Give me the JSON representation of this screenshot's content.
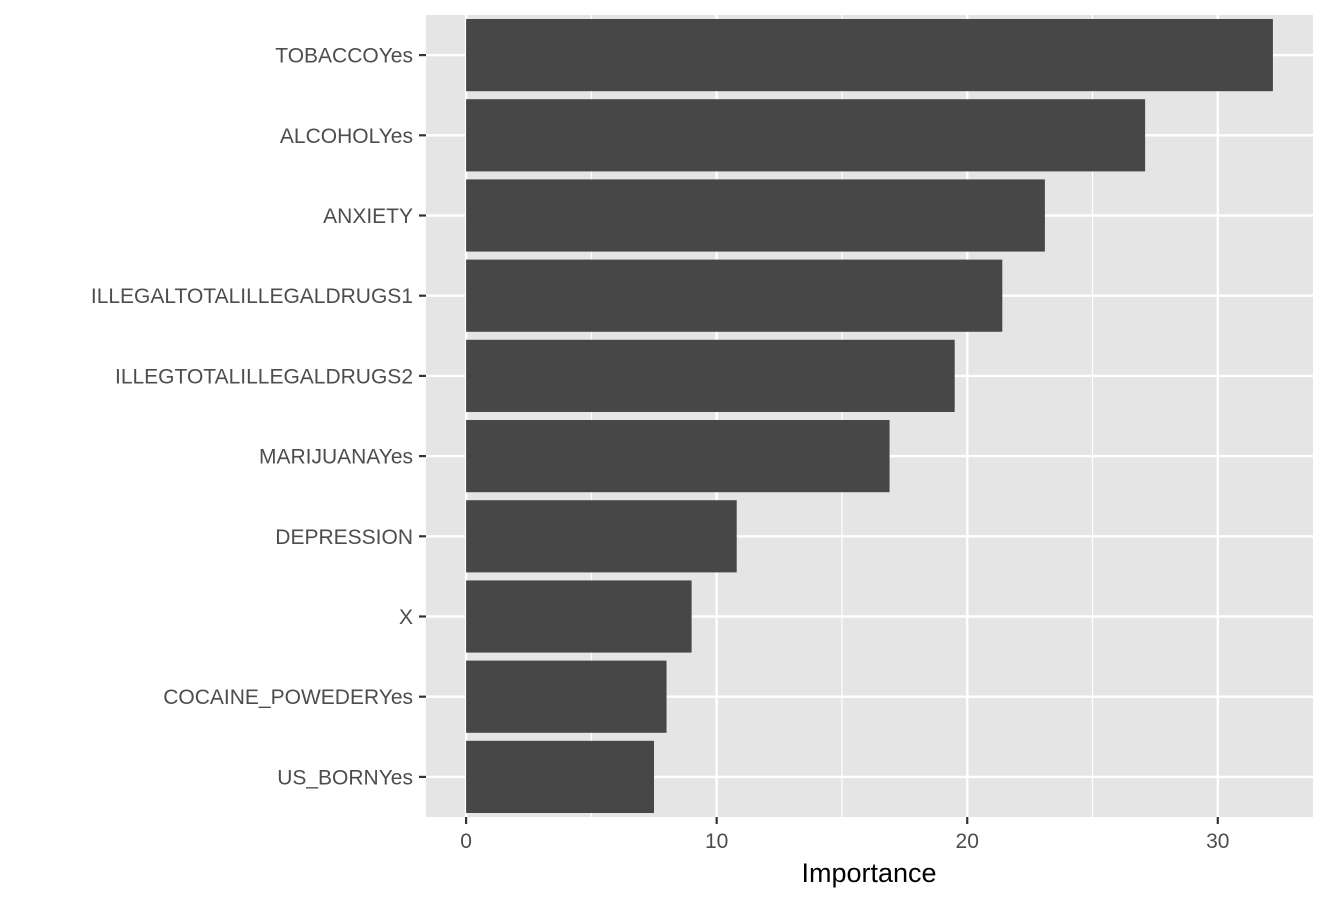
{
  "chart_data": {
    "type": "bar",
    "orientation": "horizontal",
    "title": "",
    "xlabel": "Importance",
    "ylabel": "",
    "categories": [
      "TOBACCOYes",
      "ALCOHOLYes",
      "ANXIETY",
      "ILLEGALTOTALILLEGALDRUGS1",
      "ILLEGTOTALILLEGALDRUGS2",
      "MARIJUANAYes",
      "DEPRESSION",
      "X",
      "COCAINE_POWEDERYes",
      "US_BORNYes"
    ],
    "values": [
      32.2,
      27.1,
      23.1,
      21.4,
      19.5,
      16.9,
      10.8,
      9.0,
      8.0,
      7.5
    ],
    "xlim": [
      -1.6,
      33.8
    ],
    "x_ticks": [
      0,
      10,
      20,
      30
    ],
    "x_tick_labels": [
      "0",
      "10",
      "20",
      "30"
    ],
    "grid": true,
    "colors": {
      "bar": "#474747",
      "panel": "#e5e5e5",
      "grid": "#ffffff",
      "tick": "#333333",
      "tick_text": "#4d4d4d"
    }
  }
}
